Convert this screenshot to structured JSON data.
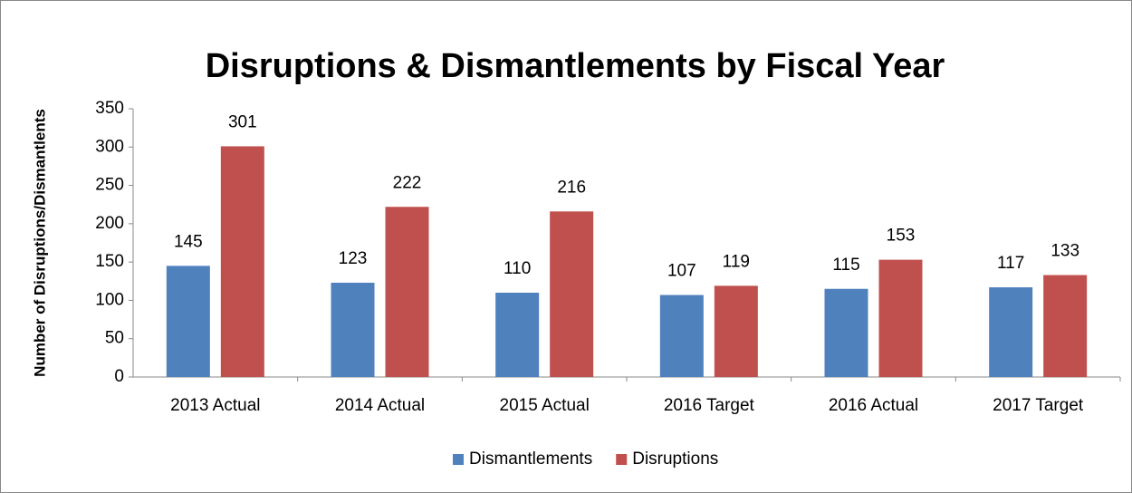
{
  "chart_data": {
    "type": "bar",
    "title": "Disruptions & Dismantlements by Fiscal Year",
    "y_label": "Number of Disruptions/Dismantlents",
    "categories": [
      "2013 Actual",
      "2014 Actual",
      "2015 Actual",
      "2016 Target",
      "2016 Actual",
      "2017 Target"
    ],
    "series": [
      {
        "name": "Dismantlements",
        "color": "#4f81bd",
        "values": [
          145,
          123,
          110,
          107,
          115,
          117
        ]
      },
      {
        "name": "Disruptions",
        "color": "#c0504d",
        "values": [
          301,
          222,
          216,
          119,
          153,
          133
        ]
      }
    ],
    "ylim": [
      0,
      350
    ],
    "yticks": [
      0,
      50,
      100,
      150,
      200,
      250,
      300,
      350
    ],
    "grid": false,
    "legend": "bottom",
    "data_labels": true
  }
}
